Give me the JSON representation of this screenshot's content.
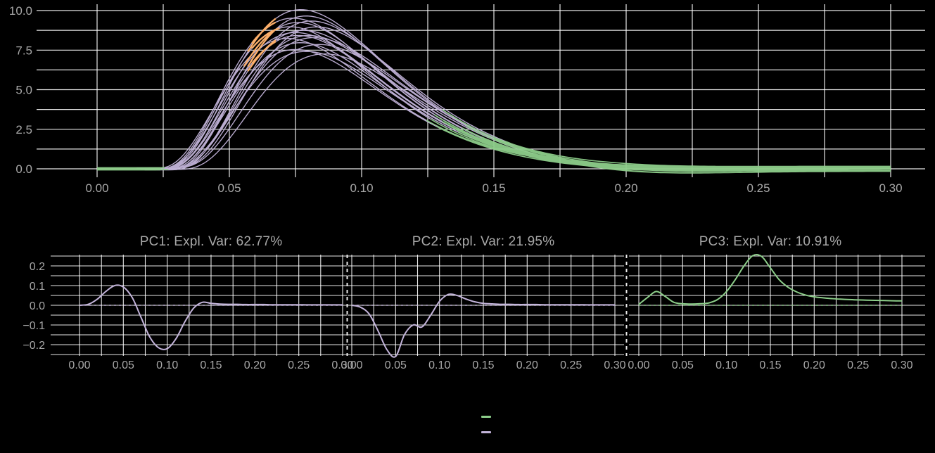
{
  "page": {
    "background": "#000000",
    "text_color": "#a8a8a8"
  },
  "colors": {
    "lavender": "#c3b4da",
    "green": "#8dce8a",
    "orange": "#fbae6a",
    "grid": "#ffffff"
  },
  "legend": {
    "position": "bottom-center",
    "items": [
      {
        "name": "green-series",
        "color_key": "green",
        "label": ""
      },
      {
        "name": "lavender-series",
        "color_key": "lavender",
        "label": ""
      }
    ]
  },
  "pc_common": {
    "xlim": [
      0,
      0.3
    ],
    "ylim": [
      -0.27,
      0.27
    ],
    "x_minor_step": 0.025,
    "y_minor_step": 0.05,
    "x_ticks": [
      {
        "label": "0.00",
        "v": 0
      },
      {
        "label": "0.05",
        "v": 0.05
      },
      {
        "label": "0.10",
        "v": 0.1
      },
      {
        "label": "0.15",
        "v": 0.15
      },
      {
        "label": "0.20",
        "v": 0.2
      },
      {
        "label": "0.25",
        "v": 0.25
      },
      {
        "label": "0.30",
        "v": 0.3
      }
    ],
    "y_ticks": [
      {
        "label": "0.2",
        "v": 0.2
      },
      {
        "label": "0.1",
        "v": 0.1
      },
      {
        "label": "0.0",
        "v": 0
      },
      {
        "label": "−0.1",
        "v": -0.1
      },
      {
        "label": "−0.2",
        "v": -0.2
      }
    ]
  },
  "chart_data": [
    {
      "id": "sample-curves",
      "type": "line",
      "title": "",
      "xlabel": "",
      "ylabel": "",
      "xlim": [
        -0.012,
        0.313
      ],
      "ylim": [
        -0.53,
        10.45
      ],
      "grid": true,
      "x_minor_step": 0.025,
      "y_minor_step": 1.25,
      "x_grid_range": [
        0,
        0.3
      ],
      "y_grid_range": [
        0,
        10
      ],
      "x_ticks": [
        {
          "label": "0.00",
          "v": 0
        },
        {
          "label": "0.05",
          "v": 0.05
        },
        {
          "label": "0.10",
          "v": 0.1
        },
        {
          "label": "0.15",
          "v": 0.15
        },
        {
          "label": "0.20",
          "v": 0.2
        },
        {
          "label": "0.25",
          "v": 0.25
        },
        {
          "label": "0.30",
          "v": 0.3
        }
      ],
      "y_ticks": [
        {
          "label": "0.0",
          "v": 0
        },
        {
          "label": "2.5",
          "v": 2.5
        },
        {
          "label": "5.0",
          "v": 5
        },
        {
          "label": "7.5",
          "v": 7.5
        },
        {
          "label": "10.0",
          "v": 10
        }
      ],
      "n_curves": 18,
      "model": "y(x) = amp*t^k*exp(k*(1-t)) with t=(x-onset)/(peak-onset) for t>0 else 0; plus base + end*clamp((x-0.15)/0.05,0,1) - dip*exp(-((x-0.205)/0.045)^2)",
      "segment_colors": {
        "default": "lavender",
        "lead_and_tail": "green",
        "rise_window": "orange"
      },
      "curves": [
        {
          "amp": 10.0,
          "onset": 0.024,
          "peak": 0.077,
          "k": 3.2,
          "green_lead": 0.02,
          "green_from": 0.13,
          "orange": [
            0.057,
            0.068
          ],
          "dip": 0.1,
          "end": 0.1,
          "base": 0.06
        },
        {
          "amp": 9.7,
          "onset": 0.026,
          "peak": 0.079,
          "k": 3.3,
          "green_lead": 0.022,
          "green_from": 0.14,
          "orange": [
            0.057,
            0.067
          ],
          "dip": 0.18,
          "end": -0.05,
          "base": -0.04
        },
        {
          "amp": 9.5,
          "onset": 0.023,
          "peak": 0.074,
          "k": 3.1,
          "green_lead": 0.018,
          "green_from": 0.128,
          "orange": [
            0.058,
            0.068
          ],
          "dip": 0.05,
          "end": 0.06,
          "base": 0.02
        },
        {
          "amp": 9.4,
          "onset": 0.027,
          "peak": 0.081,
          "k": 3.4,
          "green_lead": 0.024,
          "green_from": 0.15,
          "orange": null,
          "dip": 0.22,
          "end": -0.1,
          "base": -0.06
        },
        {
          "amp": 9.2,
          "onset": 0.025,
          "peak": 0.076,
          "k": 3.2,
          "green_lead": 0.02,
          "green_from": 0.132,
          "orange": [
            0.056,
            0.066
          ],
          "dip": 0.12,
          "end": 0.02,
          "base": 0.05
        },
        {
          "amp": 9.0,
          "onset": 0.024,
          "peak": 0.073,
          "k": 3.0,
          "green_lead": 0.016,
          "green_from": 0.126,
          "orange": [
            0.058,
            0.069
          ],
          "dip": 0.02,
          "end": 0.12,
          "base": -0.02
        },
        {
          "amp": 8.9,
          "onset": 0.028,
          "peak": 0.083,
          "k": 3.5,
          "green_lead": 0.025,
          "green_from": 0.155,
          "orange": null,
          "dip": 0.25,
          "end": -0.08,
          "base": 0.07
        },
        {
          "amp": 8.8,
          "onset": 0.025,
          "peak": 0.078,
          "k": 3.2,
          "green_lead": 0.021,
          "green_from": 0.138,
          "orange": [
            0.057,
            0.067
          ],
          "dip": 0.15,
          "end": 0.04,
          "base": -0.05
        },
        {
          "amp": 8.6,
          "onset": 0.023,
          "peak": 0.075,
          "k": 3.1,
          "green_lead": 0.019,
          "green_from": 0.13,
          "orange": null,
          "dip": 0.08,
          "end": -0.02,
          "base": 0.01
        },
        {
          "amp": 8.5,
          "onset": 0.027,
          "peak": 0.08,
          "k": 3.3,
          "green_lead": 0.023,
          "green_from": 0.145,
          "orange": null,
          "dip": 0.2,
          "end": 0.08,
          "base": -0.07
        },
        {
          "amp": 8.4,
          "onset": 0.024,
          "peak": 0.076,
          "k": 3.2,
          "green_lead": 0.02,
          "green_from": 0.133,
          "orange": [
            0.058,
            0.068
          ],
          "dip": 0.1,
          "end": -0.12,
          "base": 0.03
        },
        {
          "amp": 8.3,
          "onset": 0.026,
          "peak": 0.082,
          "k": 3.4,
          "green_lead": 0.024,
          "green_from": 0.15,
          "orange": null,
          "dip": 0.27,
          "end": 0.0,
          "base": -0.01
        },
        {
          "amp": 8.2,
          "onset": 0.022,
          "peak": 0.072,
          "k": 3.0,
          "green_lead": 0.015,
          "green_from": 0.124,
          "orange": null,
          "dip": 0.04,
          "end": 0.06,
          "base": 0.04
        },
        {
          "amp": 8.0,
          "onset": 0.025,
          "peak": 0.077,
          "k": 3.2,
          "green_lead": 0.02,
          "green_from": 0.136,
          "orange": null,
          "dip": 0.14,
          "end": -0.06,
          "base": -0.03
        },
        {
          "amp": 7.8,
          "onset": 0.028,
          "peak": 0.084,
          "k": 3.5,
          "green_lead": 0.026,
          "green_from": 0.158,
          "orange": null,
          "dip": 0.24,
          "end": 0.1,
          "base": 0.06
        },
        {
          "amp": 7.6,
          "onset": 0.024,
          "peak": 0.075,
          "k": 3.1,
          "green_lead": 0.018,
          "green_from": 0.129,
          "orange": null,
          "dip": 0.06,
          "end": -0.04,
          "base": -0.06
        },
        {
          "amp": 7.4,
          "onset": 0.026,
          "peak": 0.079,
          "k": 3.3,
          "green_lead": 0.022,
          "green_from": 0.142,
          "orange": null,
          "dip": 0.18,
          "end": 0.02,
          "base": 0.02
        },
        {
          "amp": 7.3,
          "onset": 0.029,
          "peak": 0.086,
          "k": 3.6,
          "green_lead": 0.027,
          "green_from": 0.165,
          "orange": null,
          "dip": 0.28,
          "end": -0.09,
          "base": -0.04
        }
      ]
    },
    {
      "id": "pc1",
      "type": "line",
      "title": "PC1: Expl. Var: 62.77%",
      "explained_variance_pct": 62.77,
      "color_key": "lavender",
      "zero_line": "dashed",
      "x_start": 0,
      "x_step": 0.01,
      "y": [
        0.0,
        0.005,
        0.03,
        0.07,
        0.1,
        0.093,
        0.04,
        -0.06,
        -0.16,
        -0.215,
        -0.22,
        -0.17,
        -0.085,
        -0.015,
        0.015,
        0.01,
        0.006,
        0.005,
        0.005,
        0.004,
        0.004,
        0.004,
        0.003,
        0.003,
        0.003,
        0.003,
        0.002,
        0.002,
        0.002,
        0.002,
        0.002
      ]
    },
    {
      "id": "pc2",
      "type": "line",
      "title": "PC2: Expl. Var: 21.95%",
      "explained_variance_pct": 21.95,
      "color_key": "lavender",
      "zero_line": "dashed",
      "x_start": 0,
      "x_step": 0.01,
      "y": [
        0.0,
        -0.01,
        -0.045,
        -0.13,
        -0.225,
        -0.26,
        -0.15,
        -0.1,
        -0.11,
        -0.05,
        0.02,
        0.055,
        0.05,
        0.032,
        0.018,
        0.01,
        0.007,
        0.005,
        0.005,
        0.004,
        0.004,
        0.004,
        0.003,
        0.003,
        0.003,
        0.003,
        0.003,
        0.002,
        0.002,
        0.002,
        0.002
      ]
    },
    {
      "id": "pc3",
      "type": "line",
      "title": "PC3: Expl. Var: 10.91%",
      "explained_variance_pct": 10.91,
      "color_key": "green",
      "zero_line": "dashed",
      "x_start": 0,
      "x_step": 0.01,
      "y": [
        0.005,
        0.04,
        0.07,
        0.045,
        0.015,
        0.008,
        0.006,
        0.008,
        0.012,
        0.03,
        0.07,
        0.13,
        0.2,
        0.252,
        0.248,
        0.19,
        0.13,
        0.092,
        0.068,
        0.052,
        0.043,
        0.038,
        0.034,
        0.031,
        0.029,
        0.027,
        0.026,
        0.025,
        0.024,
        0.023,
        0.022
      ]
    }
  ]
}
